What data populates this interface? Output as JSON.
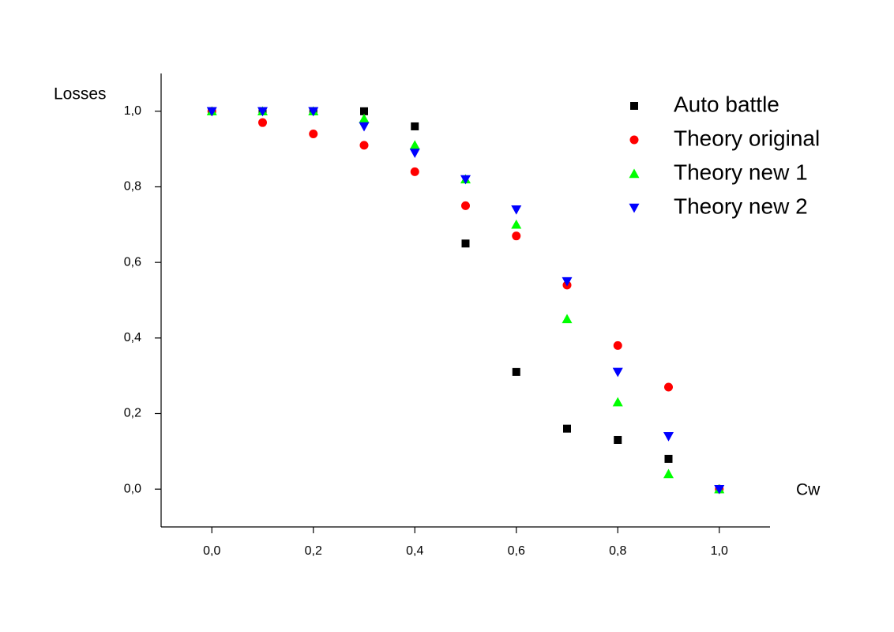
{
  "chart_data": {
    "type": "scatter",
    "x_label": "Cw",
    "y_label": "Losses",
    "x": [
      0,
      0.1,
      0.2,
      0.3,
      0.4,
      0.5,
      0.6,
      0.7,
      0.8,
      0.9,
      1.0
    ],
    "series": [
      {
        "name": "Auto battle",
        "color": "#000000",
        "marker": "square",
        "values": [
          1,
          1,
          1,
          1,
          0.96,
          0.65,
          0.31,
          0.16,
          0.13,
          0.08,
          0
        ]
      },
      {
        "name": "Theory original",
        "color": "#ff0000",
        "marker": "circle",
        "values": [
          1,
          0.97,
          0.94,
          0.91,
          0.84,
          0.75,
          0.67,
          0.54,
          0.38,
          0.27,
          0
        ]
      },
      {
        "name": "Theory new 1",
        "color": "#00ff00",
        "marker": "triangle-up",
        "values": [
          1,
          1,
          1,
          0.98,
          0.91,
          0.82,
          0.7,
          0.45,
          0.23,
          0.04,
          0
        ]
      },
      {
        "name": "Theory new 2",
        "color": "#0000ff",
        "marker": "triangle-down",
        "values": [
          1,
          1,
          1,
          0.96,
          0.89,
          0.82,
          0.74,
          0.55,
          0.31,
          0.14,
          0
        ]
      }
    ],
    "xlim": [
      -0.1,
      1.1
    ],
    "ylim": [
      -0.1,
      1.1
    ],
    "xticks": [
      {
        "value": 0,
        "label": "0,0"
      },
      {
        "value": 0.2,
        "label": "0,2"
      },
      {
        "value": 0.4,
        "label": "0,4"
      },
      {
        "value": 0.6,
        "label": "0,6"
      },
      {
        "value": 0.8,
        "label": "0,8"
      },
      {
        "value": 1.0,
        "label": "1,0"
      }
    ],
    "yticks": [
      {
        "value": 0,
        "label": "0,0"
      },
      {
        "value": 0.2,
        "label": "0,2"
      },
      {
        "value": 0.4,
        "label": "0,4"
      },
      {
        "value": 0.6,
        "label": "0,6"
      },
      {
        "value": 0.8,
        "label": "0,8"
      },
      {
        "value": 1.0,
        "label": "1,0"
      }
    ],
    "legend": "upper right",
    "grid": false
  }
}
